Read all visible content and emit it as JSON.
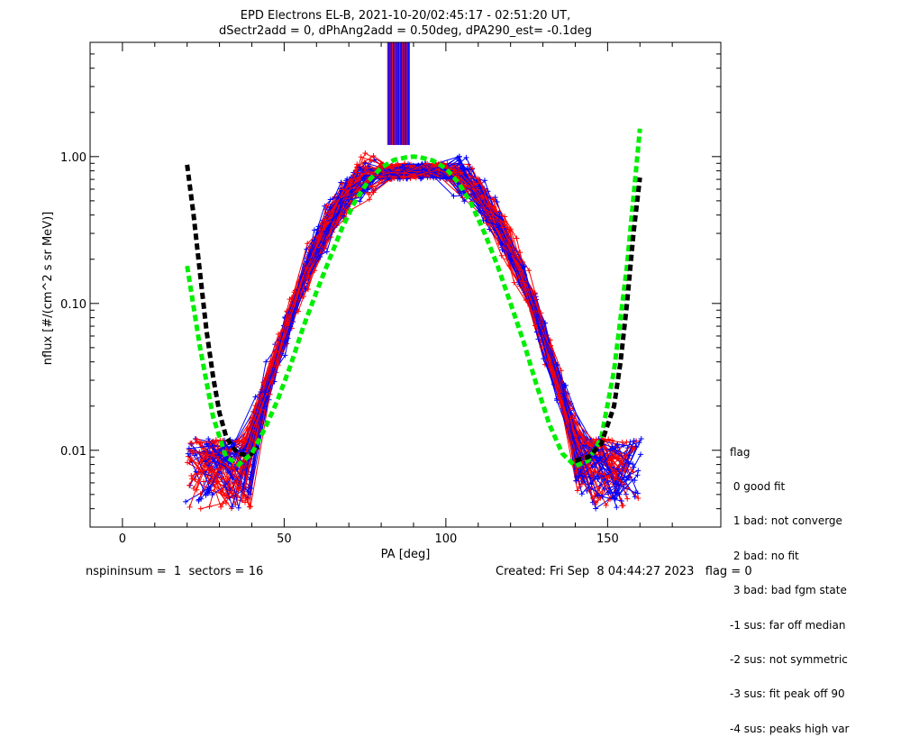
{
  "chart_data": {
    "type": "line",
    "title": "EPD Electrons EL-B, 2021-10-20/02:45:17 - 02:51:20 UT,",
    "subtitle": "dSectr2add = 0, dPhAng2add = 0.50deg, dPA290_est=  -0.1deg",
    "xlabel": "PA [deg]",
    "ylabel": "nflux [#/(cm^2 s sr MeV)]",
    "xlim": [
      -10,
      185
    ],
    "ylim": [
      0.003,
      6.0
    ],
    "yscale": "log",
    "xticks": [
      0,
      50,
      100,
      150
    ],
    "xtick_labels": [
      "0",
      "50",
      "100",
      "150"
    ],
    "yticks": [
      0.01,
      0.1,
      1.0
    ],
    "ytick_labels": [
      "0.01",
      "0.10",
      "1.00"
    ],
    "series": [
      {
        "color": "#000000",
        "style": "dashed-thick",
        "x": [
          20,
          22,
          24,
          26,
          28,
          30,
          32,
          34,
          36,
          38,
          40,
          42
        ],
        "y": [
          0.88,
          0.4,
          0.16,
          0.065,
          0.032,
          0.018,
          0.0125,
          0.0105,
          0.0095,
          0.0093,
          0.0095,
          0.0105
        ]
      },
      {
        "color": "#00ee00",
        "style": "dashed-thick",
        "x": [
          20,
          24,
          28,
          32,
          36,
          40,
          44,
          48,
          52,
          56,
          60,
          64,
          68,
          72,
          76,
          80,
          84,
          88,
          90,
          92,
          96,
          100,
          104,
          108,
          112,
          116,
          120,
          124,
          128,
          132,
          136,
          140,
          144,
          148,
          152,
          156,
          160
        ],
        "y": [
          0.18,
          0.05,
          0.017,
          0.009,
          0.008,
          0.0095,
          0.014,
          0.022,
          0.038,
          0.07,
          0.12,
          0.2,
          0.33,
          0.5,
          0.68,
          0.84,
          0.95,
          0.99,
          1.0,
          0.99,
          0.94,
          0.83,
          0.66,
          0.47,
          0.3,
          0.18,
          0.1,
          0.055,
          0.028,
          0.015,
          0.0095,
          0.0078,
          0.0085,
          0.012,
          0.035,
          0.18,
          1.55
        ]
      },
      {
        "color": "#000000",
        "style": "dashed-thick",
        "x": [
          140,
          144,
          148,
          152,
          154,
          156,
          158,
          160
        ],
        "y": [
          0.0085,
          0.009,
          0.011,
          0.02,
          0.04,
          0.1,
          0.3,
          0.72
        ]
      }
    ],
    "data_traces_colors": [
      "#0000ff",
      "#ff0000"
    ]
  },
  "legend": {
    "title": "flag",
    "items": [
      " 0 good fit",
      " 1 bad: not converge",
      " 2 bad: no fit",
      " 3 bad: bad fgm state",
      "-1 sus: far off median",
      "-2 sus: not symmetric",
      "-3 sus: fit peak off 90",
      "-4 sus: peaks high var"
    ]
  },
  "footer": {
    "left": "nspininsum =  1  sectors = 16",
    "right": "Created: Fri Sep  8 04:44:27 2023   flag = 0"
  }
}
